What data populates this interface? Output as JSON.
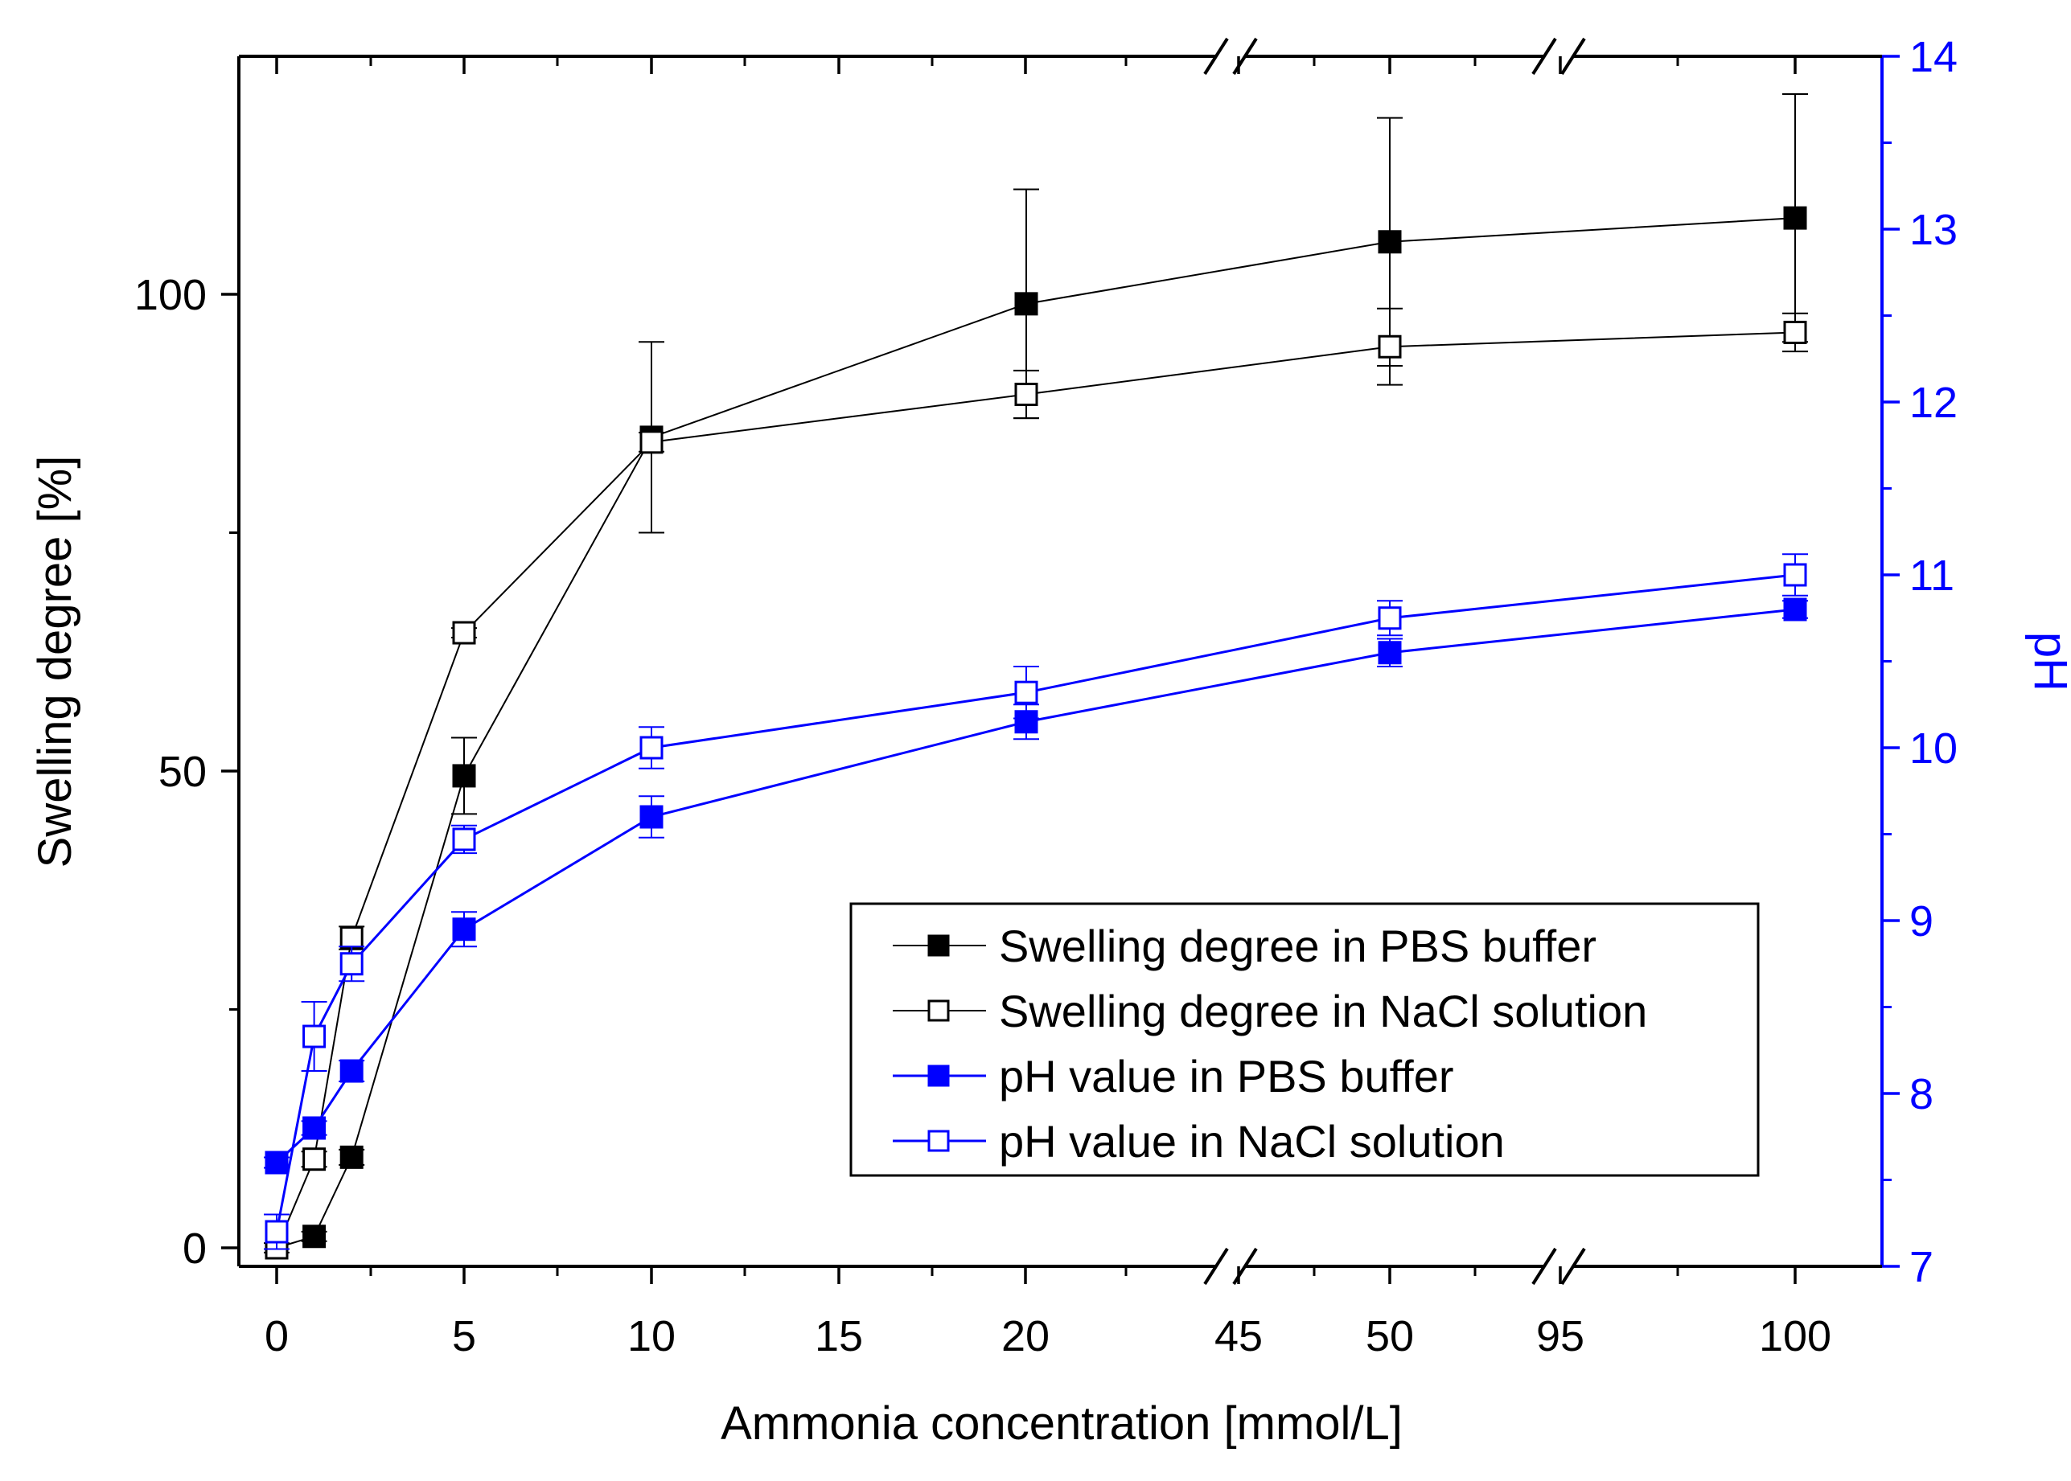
{
  "chart_data": {
    "type": "line",
    "xlabel": "Ammonia concentration [mmol/L]",
    "ylabel": "Swelling degree [%]",
    "y2label": "pH",
    "x_tick_labels": [
      "0",
      "5",
      "10",
      "15",
      "20",
      "45",
      "50",
      "95",
      "100"
    ],
    "y_tick_labels": [
      "0",
      "50",
      "100"
    ],
    "y2_tick_labels": [
      "7",
      "8",
      "9",
      "10",
      "11",
      "12",
      "13",
      "14"
    ],
    "ylim": [
      -2,
      125
    ],
    "y2lim": [
      7,
      14
    ],
    "axis_breaks": [
      "between 20 and 45",
      "between 50 and 95"
    ],
    "colors": {
      "swelling": "#000000",
      "ph": "#0000ff"
    },
    "series": [
      {
        "name": "Swelling degree in PBS buffer",
        "axis": "left",
        "marker": "filled-square",
        "color": "#000000",
        "x": [
          0,
          1,
          2,
          5,
          10,
          20,
          50,
          100
        ],
        "values": [
          0,
          1.2,
          9.5,
          49.5,
          85,
          99,
          105.5,
          108
        ],
        "errors": [
          0,
          0.5,
          0.8,
          4,
          10,
          12,
          13,
          13
        ]
      },
      {
        "name": "Swelling degree in NaCl solution",
        "axis": "left",
        "marker": "open-square",
        "color": "#000000",
        "x": [
          0,
          1,
          2,
          5,
          10,
          20,
          50,
          100
        ],
        "values": [
          0,
          9.3,
          32.5,
          64.5,
          84.5,
          89.5,
          94.5,
          96
        ],
        "errors": [
          0.5,
          0.8,
          1.2,
          0.5,
          1,
          2.5,
          4,
          2
        ]
      },
      {
        "name": "pH value in PBS buffer",
        "axis": "right",
        "marker": "filled-square",
        "color": "#0000ff",
        "x": [
          0,
          1,
          2,
          5,
          10,
          20,
          50,
          100
        ],
        "values": [
          7.6,
          7.8,
          8.13,
          8.95,
          9.6,
          10.15,
          10.55,
          10.8
        ],
        "errors": [
          0.03,
          0.04,
          0.06,
          0.1,
          0.12,
          0.1,
          0.08,
          0.05
        ]
      },
      {
        "name": "pH value in NaCl solution",
        "axis": "right",
        "marker": "open-square",
        "color": "#0000ff",
        "x": [
          0,
          1,
          2,
          5,
          10,
          20,
          50,
          100
        ],
        "values": [
          7.2,
          8.33,
          8.75,
          9.47,
          10.0,
          10.32,
          10.75,
          11.0
        ],
        "errors": [
          0.1,
          0.2,
          0.1,
          0.08,
          0.12,
          0.15,
          0.1,
          0.12
        ]
      }
    ],
    "legend": {
      "position": "bottom-right",
      "entries": [
        "Swelling degree in PBS buffer",
        "Swelling degree in NaCl solution",
        "pH value in PBS buffer",
        "pH value in NaCl solution"
      ]
    }
  }
}
